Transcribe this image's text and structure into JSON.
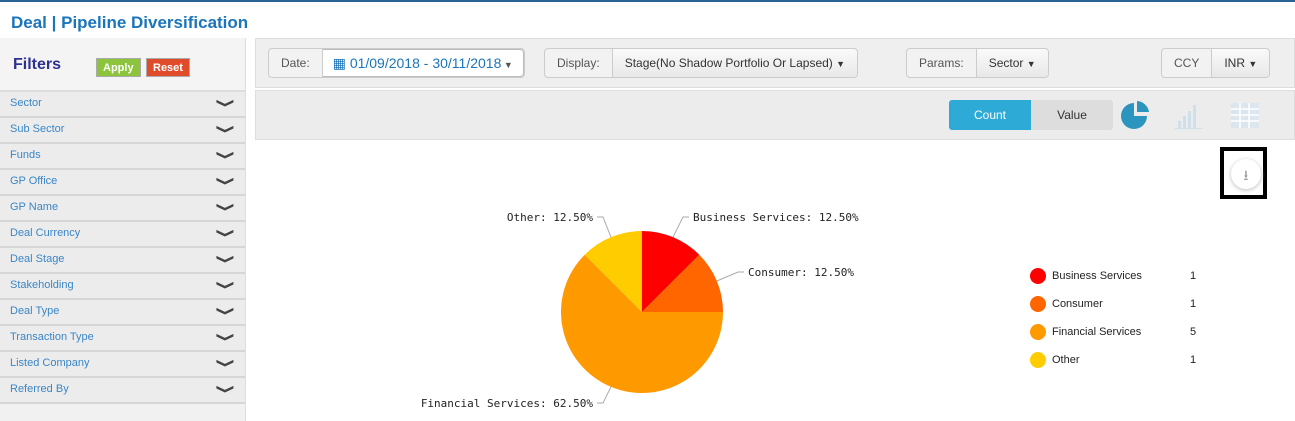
{
  "header": {
    "title": "Deal | Pipeline Diversification"
  },
  "filters": {
    "title": "Filters",
    "apply": "Apply",
    "reset": "Reset",
    "items": [
      "Sector",
      "Sub Sector",
      "Funds",
      "GP Office",
      "GP Name",
      "Deal Currency",
      "Deal Stage",
      "Stakeholding",
      "Deal Type",
      "Transaction Type",
      "Listed Company",
      "Referred By"
    ]
  },
  "toolbar": {
    "date_label": "Date:",
    "date_value": "01/09/2018 - 30/11/2018",
    "display_label": "Display:",
    "display_value": "Stage(No Shadow Portfolio Or Lapsed)",
    "params_label": "Params:",
    "params_value": "Sector",
    "ccy_label": "CCY",
    "ccy_value": "INR"
  },
  "view": {
    "count": "Count",
    "value": "Value"
  },
  "colors": {
    "accent": "#2eaad6"
  },
  "chart_data": {
    "type": "pie",
    "labels": [
      "Business Services",
      "Consumer",
      "Financial Services",
      "Other"
    ],
    "values": [
      1,
      1,
      5,
      1
    ],
    "percent_labels": [
      "Business Services: 12.50%",
      "Consumer: 12.50%",
      "Financial Services: 62.50%",
      "Other: 12.50%"
    ],
    "colors": [
      "#ff0000",
      "#ff6600",
      "#ff9900",
      "#ffcc00"
    ],
    "legend": "right"
  }
}
